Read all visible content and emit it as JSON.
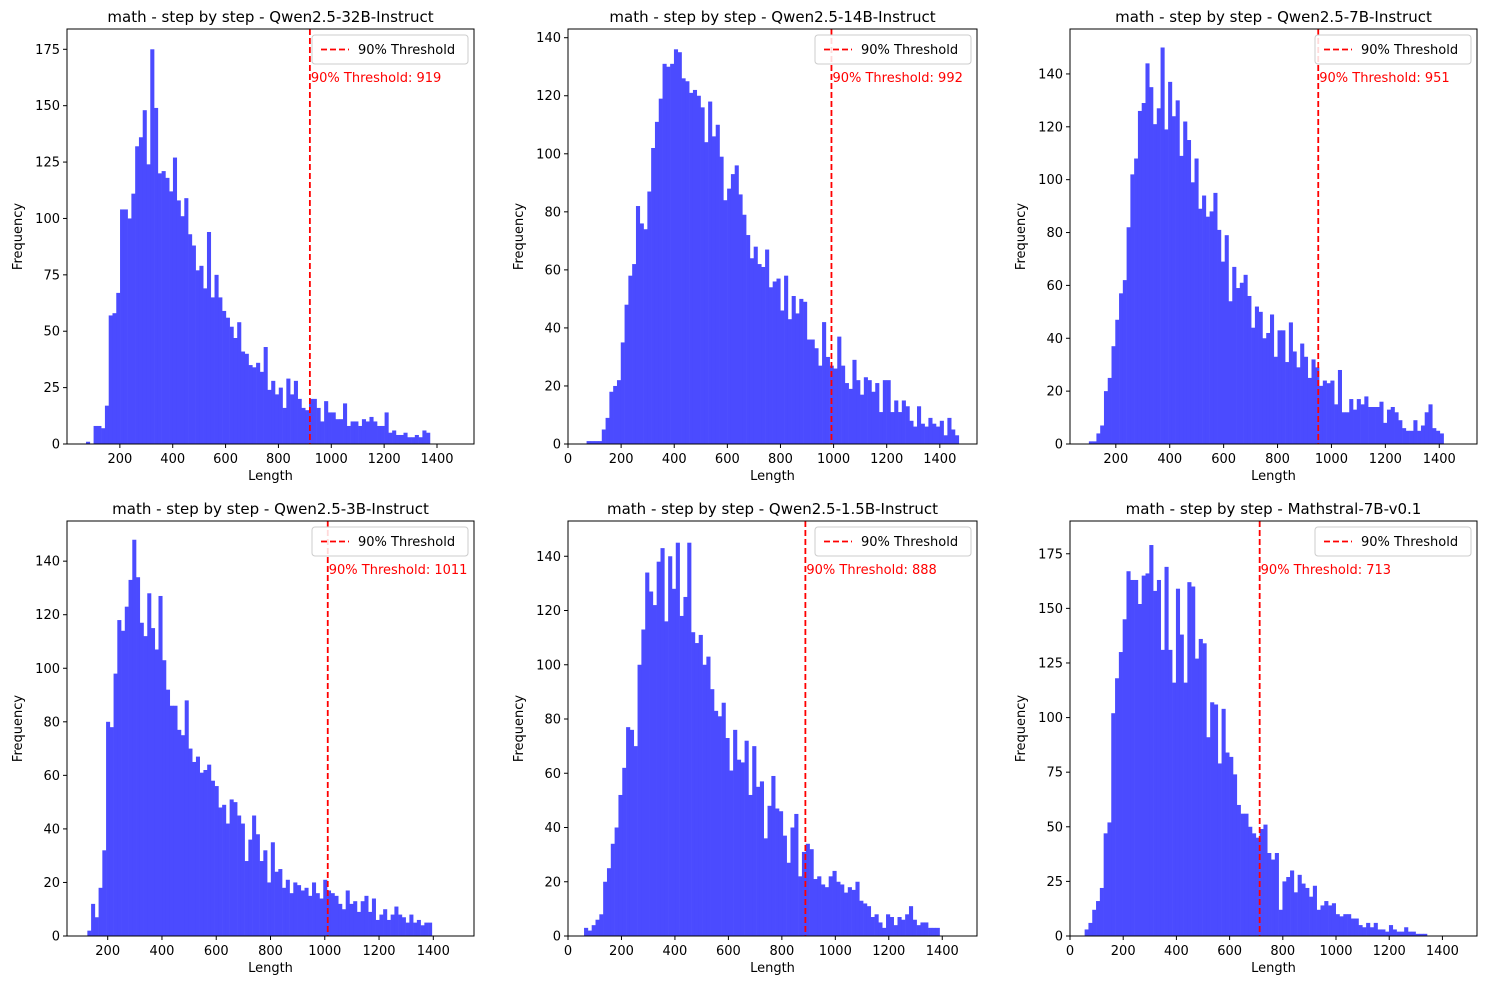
{
  "chart_data": [
    {
      "type": "bar",
      "title": "math - step by step - Qwen2.5-32B-Instruct",
      "xlabel": "Length",
      "ylabel": "Frequency",
      "xlim": [
        0,
        1540
      ],
      "ylim": [
        0,
        184
      ],
      "xticks": [
        200,
        400,
        600,
        800,
        1000,
        1200,
        1400
      ],
      "yticks": [
        0,
        25,
        50,
        75,
        100,
        125,
        150,
        175
      ],
      "bin_start": 72,
      "bin_width": 14.3,
      "values": [
        1,
        0,
        8,
        8,
        7,
        17,
        57,
        58,
        67,
        104,
        104,
        100,
        111,
        132,
        136,
        148,
        124,
        175,
        149,
        120,
        121,
        118,
        112,
        127,
        108,
        101,
        109,
        93,
        88,
        77,
        79,
        69,
        94,
        65,
        75,
        65,
        59,
        56,
        52,
        47,
        54,
        41,
        40,
        35,
        34,
        36,
        32,
        43,
        24,
        28,
        22,
        25,
        16,
        29,
        22,
        28,
        20,
        16,
        15,
        20,
        20,
        16,
        10,
        19,
        14,
        14,
        11,
        11,
        18,
        8,
        10,
        10,
        8,
        11,
        10,
        12,
        10,
        8,
        8,
        14,
        5,
        6,
        4,
        4,
        5,
        3,
        3,
        4,
        3,
        6,
        5,
        0,
        0,
        0,
        0,
        0,
        0,
        0,
        0,
        0
      ],
      "threshold": 919,
      "threshold_label": "90% Threshold: 919",
      "legend": {
        "label": "90% Threshold",
        "position": "top-right"
      },
      "bar_color": "#4b4bff",
      "threshold_color": "#ff0000"
    },
    {
      "type": "bar",
      "title": "math - step by step - Qwen2.5-14B-Instruct",
      "xlabel": "Length",
      "ylabel": "Frequency",
      "xlim": [
        0,
        1540
      ],
      "ylim": [
        0,
        143
      ],
      "xticks": [
        0,
        200,
        400,
        600,
        800,
        1000,
        1200,
        1400
      ],
      "yticks": [
        0,
        20,
        40,
        60,
        80,
        100,
        120,
        140
      ],
      "bin_start": 70,
      "bin_width": 14.3,
      "values": [
        1,
        1,
        1,
        1,
        5,
        9,
        18,
        20,
        22,
        35,
        48,
        58,
        62,
        82,
        76,
        74,
        87,
        102,
        111,
        119,
        131,
        130,
        131,
        136,
        135,
        126,
        125,
        121,
        122,
        120,
        116,
        104,
        118,
        106,
        110,
        99,
        84,
        88,
        93,
        96,
        86,
        79,
        72,
        64,
        68,
        62,
        61,
        67,
        54,
        56,
        57,
        46,
        58,
        43,
        51,
        45,
        50,
        49,
        36,
        36,
        33,
        27,
        42,
        30,
        27,
        26,
        37,
        27,
        21,
        19,
        29,
        22,
        17,
        23,
        22,
        18,
        21,
        11,
        22,
        22,
        11,
        15,
        11,
        15,
        13,
        8,
        6,
        13,
        7,
        6,
        9,
        7,
        6,
        8,
        3,
        9,
        5,
        3,
        0,
        0,
        0
      ],
      "threshold": 992,
      "threshold_label": "90% Threshold: 992",
      "legend": {
        "label": "90% Threshold",
        "position": "top-right"
      },
      "bar_color": "#4b4bff",
      "threshold_color": "#ff0000"
    },
    {
      "type": "bar",
      "title": "math - step by step - Qwen2.5-7B-Instruct",
      "xlabel": "Length",
      "ylabel": "Frequency",
      "xlim": [
        30,
        1540
      ],
      "ylim": [
        0,
        157
      ],
      "xticks": [
        200,
        400,
        600,
        800,
        1000,
        1200,
        1400
      ],
      "yticks": [
        0,
        20,
        40,
        60,
        80,
        100,
        120,
        140
      ],
      "bin_start": 100,
      "bin_width": 14.0,
      "values": [
        1,
        1,
        4,
        7,
        20,
        25,
        37,
        47,
        57,
        62,
        82,
        102,
        108,
        126,
        129,
        144,
        135,
        121,
        127,
        150,
        119,
        137,
        124,
        130,
        109,
        122,
        115,
        99,
        108,
        89,
        94,
        86,
        88,
        95,
        81,
        69,
        79,
        54,
        67,
        59,
        61,
        64,
        56,
        44,
        52,
        50,
        40,
        42,
        49,
        33,
        43,
        43,
        31,
        46,
        35,
        29,
        38,
        33,
        25,
        32,
        29,
        22,
        24,
        23,
        24,
        15,
        28,
        12,
        12,
        17,
        13,
        17,
        15,
        18,
        14,
        14,
        14,
        16,
        8,
        13,
        14,
        12,
        9,
        6,
        5,
        5,
        9,
        5,
        7,
        12,
        15,
        6,
        5,
        4,
        0,
        0,
        0,
        0
      ],
      "threshold": 951,
      "threshold_label": "90% Threshold: 951",
      "legend": {
        "label": "90% Threshold",
        "position": "top-right"
      },
      "bar_color": "#4b4bff",
      "threshold_color": "#ff0000"
    },
    {
      "type": "bar",
      "title": "math - step by step - Qwen2.5-3B-Instruct",
      "xlabel": "Length",
      "ylabel": "Frequency",
      "xlim": [
        50,
        1550
      ],
      "ylim": [
        0,
        155
      ],
      "xticks": [
        200,
        400,
        600,
        800,
        1000,
        1200,
        1400
      ],
      "yticks": [
        0,
        20,
        40,
        60,
        80,
        100,
        120,
        140
      ],
      "bin_start": 125,
      "bin_width": 13.8,
      "values": [
        2,
        12,
        7,
        18,
        32,
        80,
        78,
        98,
        118,
        114,
        123,
        133,
        148,
        134,
        117,
        112,
        128,
        115,
        107,
        127,
        103,
        92,
        86,
        86,
        77,
        75,
        88,
        70,
        65,
        67,
        61,
        62,
        64,
        58,
        56,
        48,
        49,
        42,
        51,
        50,
        45,
        42,
        28,
        36,
        45,
        38,
        28,
        32,
        20,
        35,
        24,
        25,
        18,
        21,
        16,
        20,
        19,
        17,
        18,
        15,
        20,
        16,
        14,
        21,
        17,
        16,
        15,
        12,
        10,
        17,
        12,
        13,
        9,
        13,
        15,
        9,
        14,
        6,
        8,
        10,
        6,
        8,
        11,
        8,
        7,
        5,
        8,
        5,
        6,
        4,
        5,
        5,
        0,
        0,
        0,
        0
      ],
      "threshold": 1011,
      "threshold_label": "90% Threshold: 1011",
      "legend": {
        "label": "90% Threshold",
        "position": "top-right"
      },
      "bar_color": "#4b4bff",
      "threshold_color": "#ff0000"
    },
    {
      "type": "bar",
      "title": "math - step by step - Qwen2.5-1.5B-Instruct",
      "xlabel": "Length",
      "ylabel": "Frequency",
      "xlim": [
        0,
        1530
      ],
      "ylim": [
        0,
        153
      ],
      "xticks": [
        0,
        200,
        400,
        600,
        800,
        1000,
        1200,
        1400
      ],
      "yticks": [
        0,
        20,
        40,
        60,
        80,
        100,
        120,
        140
      ],
      "bin_start": 60,
      "bin_width": 14.3,
      "values": [
        3,
        2,
        4,
        6,
        8,
        20,
        25,
        34,
        40,
        52,
        62,
        77,
        76,
        70,
        100,
        113,
        134,
        127,
        122,
        138,
        143,
        116,
        140,
        128,
        145,
        118,
        125,
        145,
        112,
        108,
        111,
        100,
        103,
        91,
        83,
        81,
        86,
        73,
        61,
        76,
        65,
        64,
        72,
        52,
        70,
        55,
        57,
        36,
        48,
        59,
        47,
        46,
        37,
        27,
        40,
        45,
        22,
        31,
        34,
        32,
        21,
        22,
        19,
        18,
        22,
        24,
        20,
        19,
        16,
        18,
        17,
        20,
        13,
        12,
        11,
        7,
        8,
        5,
        3,
        8,
        7,
        4,
        7,
        6,
        8,
        11,
        6,
        4,
        5,
        5,
        3,
        3,
        3,
        0,
        0,
        0,
        0
      ],
      "threshold": 888,
      "threshold_label": "90% Threshold: 888",
      "legend": {
        "label": "90% Threshold",
        "position": "top-right"
      },
      "bar_color": "#4b4bff",
      "threshold_color": "#ff0000"
    },
    {
      "type": "bar",
      "title": "math - step by step - Mathstral-7B-v0.1",
      "xlabel": "Length",
      "ylabel": "Frequency",
      "xlim": [
        0,
        1530
      ],
      "ylim": [
        0,
        190
      ],
      "xticks": [
        0,
        200,
        400,
        600,
        800,
        1000,
        1200,
        1400
      ],
      "yticks": [
        0,
        25,
        50,
        75,
        100,
        125,
        150,
        175
      ],
      "bin_start": 55,
      "bin_width": 14.3,
      "values": [
        3,
        6,
        12,
        16,
        22,
        47,
        52,
        102,
        118,
        130,
        145,
        167,
        163,
        163,
        152,
        165,
        166,
        179,
        158,
        163,
        131,
        169,
        131,
        116,
        159,
        138,
        116,
        162,
        160,
        127,
        136,
        134,
        91,
        107,
        106,
        79,
        104,
        84,
        82,
        74,
        60,
        56,
        56,
        50,
        47,
        45,
        49,
        51,
        38,
        35,
        38,
        12,
        25,
        27,
        30,
        20,
        28,
        24,
        22,
        18,
        23,
        12,
        14,
        16,
        14,
        15,
        10,
        9,
        10,
        10,
        8,
        8,
        5,
        4,
        6,
        4,
        6,
        3,
        3,
        2,
        5,
        3,
        2,
        2,
        4,
        2,
        2,
        1,
        1,
        1,
        0,
        0,
        0,
        0,
        0
      ],
      "threshold": 713,
      "threshold_label": "90% Threshold: 713",
      "legend": {
        "label": "90% Threshold",
        "position": "top-right"
      },
      "bar_color": "#4b4bff",
      "threshold_color": "#ff0000"
    }
  ]
}
